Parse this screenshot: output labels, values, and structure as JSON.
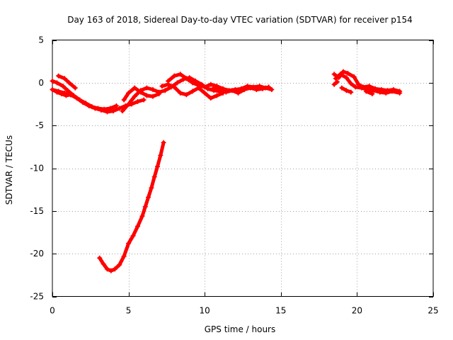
{
  "chart_data": {
    "type": "scatter",
    "title": "Day 163 of 2018, Sidereal Day-to-day VTEC variation (SDTVAR) for receiver p154",
    "xlabel": "GPS time / hours",
    "ylabel": "SDTVAR / TECUs",
    "xlim": [
      0,
      25
    ],
    "ylim": [
      -25,
      5
    ],
    "xticks": [
      0,
      5,
      10,
      15,
      20,
      25
    ],
    "yticks": [
      5,
      0,
      -5,
      -10,
      -15,
      -20,
      -25
    ],
    "grid": true,
    "marker": "plus",
    "color": "#ff0000",
    "series": [
      {
        "name": "trace-upper-a",
        "points": [
          [
            0.0,
            -0.8
          ],
          [
            0.4,
            -1.0
          ],
          [
            0.8,
            -1.2
          ],
          [
            1.2,
            -1.4
          ],
          [
            1.6,
            -1.8
          ],
          [
            2.0,
            -2.3
          ],
          [
            2.4,
            -2.7
          ],
          [
            2.8,
            -3.0
          ],
          [
            3.2,
            -3.2
          ],
          [
            3.6,
            -3.4
          ],
          [
            4.0,
            -3.3
          ],
          [
            4.4,
            -3.0
          ],
          [
            4.8,
            -2.7
          ],
          [
            5.2,
            -2.5
          ],
          [
            5.6,
            -2.2
          ],
          [
            6.0,
            -2.0
          ]
        ]
      },
      {
        "name": "trace-upper-b",
        "points": [
          [
            0.0,
            0.2
          ],
          [
            0.3,
            0.0
          ],
          [
            0.7,
            -0.4
          ],
          [
            1.0,
            -0.9
          ],
          [
            1.4,
            -1.5
          ],
          [
            1.8,
            -2.0
          ],
          [
            2.2,
            -2.4
          ],
          [
            2.6,
            -2.8
          ],
          [
            3.0,
            -3.0
          ],
          [
            3.4,
            -3.1
          ],
          [
            3.8,
            -3.0
          ],
          [
            4.2,
            -2.7
          ]
        ]
      },
      {
        "name": "trace-upper-c",
        "points": [
          [
            0.0,
            -0.8
          ],
          [
            0.3,
            -1.1
          ],
          [
            0.6,
            -1.3
          ],
          [
            0.9,
            -1.5
          ],
          [
            1.2,
            -1.4
          ]
        ]
      },
      {
        "name": "trace-upper-d",
        "points": [
          [
            0.4,
            0.8
          ],
          [
            0.8,
            0.5
          ],
          [
            1.1,
            0.0
          ],
          [
            1.5,
            -0.6
          ]
        ]
      },
      {
        "name": "trace-upper-e",
        "points": [
          [
            4.6,
            -3.3
          ],
          [
            5.0,
            -2.5
          ],
          [
            5.4,
            -1.6
          ],
          [
            5.8,
            -0.9
          ],
          [
            6.2,
            -0.6
          ],
          [
            6.6,
            -0.8
          ],
          [
            7.0,
            -1.1
          ],
          [
            7.4,
            -0.9
          ],
          [
            7.8,
            -0.5
          ],
          [
            8.2,
            0.0
          ],
          [
            8.6,
            0.4
          ],
          [
            9.0,
            0.6
          ],
          [
            9.4,
            0.2
          ],
          [
            9.8,
            -0.2
          ],
          [
            10.2,
            -0.7
          ],
          [
            10.6,
            -0.9
          ],
          [
            11.0,
            -1.0
          ]
        ]
      },
      {
        "name": "trace-upper-f",
        "points": [
          [
            4.7,
            -2.0
          ],
          [
            5.0,
            -1.2
          ],
          [
            5.4,
            -0.6
          ],
          [
            5.8,
            -1.1
          ],
          [
            6.2,
            -1.5
          ],
          [
            6.6,
            -1.6
          ],
          [
            7.0,
            -1.3
          ]
        ]
      },
      {
        "name": "trace-upper-g",
        "points": [
          [
            7.2,
            -0.4
          ],
          [
            7.6,
            -0.2
          ],
          [
            8.0,
            -0.5
          ],
          [
            8.4,
            -1.2
          ],
          [
            8.8,
            -1.4
          ],
          [
            9.2,
            -1.0
          ],
          [
            9.6,
            -0.6
          ],
          [
            10.0,
            -1.2
          ],
          [
            10.4,
            -1.8
          ],
          [
            10.8,
            -1.5
          ],
          [
            11.2,
            -1.2
          ]
        ]
      },
      {
        "name": "trace-upper-h",
        "points": [
          [
            7.6,
            0.2
          ],
          [
            8.0,
            0.8
          ],
          [
            8.4,
            1.0
          ],
          [
            8.8,
            0.5
          ],
          [
            9.2,
            0.0
          ],
          [
            9.6,
            -0.3
          ],
          [
            10.0,
            -0.5
          ],
          [
            10.4,
            -0.2
          ],
          [
            10.8,
            -0.4
          ],
          [
            11.2,
            -0.7
          ],
          [
            11.6,
            -0.9
          ],
          [
            12.0,
            -0.8
          ],
          [
            12.4,
            -0.7
          ],
          [
            12.8,
            -0.4
          ],
          [
            13.2,
            -0.5
          ],
          [
            13.6,
            -0.4
          ],
          [
            14.0,
            -0.6
          ],
          [
            14.4,
            -0.8
          ]
        ]
      },
      {
        "name": "trace-upper-i",
        "points": [
          [
            10.6,
            -0.6
          ],
          [
            11.0,
            -0.8
          ],
          [
            11.4,
            -1.1
          ],
          [
            11.8,
            -0.9
          ],
          [
            12.2,
            -1.2
          ],
          [
            12.6,
            -0.8
          ],
          [
            13.0,
            -0.6
          ],
          [
            13.4,
            -0.8
          ],
          [
            13.8,
            -0.7
          ],
          [
            14.2,
            -0.5
          ]
        ]
      },
      {
        "name": "trace-right-a",
        "points": [
          [
            18.5,
            1.0
          ],
          [
            18.8,
            0.6
          ],
          [
            19.1,
            1.3
          ],
          [
            19.4,
            1.1
          ],
          [
            19.8,
            0.7
          ],
          [
            20.1,
            -0.2
          ],
          [
            20.4,
            -0.5
          ],
          [
            20.8,
            -0.4
          ],
          [
            21.2,
            -0.7
          ],
          [
            21.6,
            -0.8
          ],
          [
            22.0,
            -0.9
          ],
          [
            22.4,
            -0.8
          ],
          [
            22.8,
            -1.0
          ]
        ]
      },
      {
        "name": "trace-right-b",
        "points": [
          [
            18.6,
            0.5
          ],
          [
            18.9,
            1.0
          ],
          [
            19.3,
            0.6
          ],
          [
            19.6,
            -0.1
          ],
          [
            19.9,
            -0.5
          ],
          [
            20.3,
            -0.6
          ],
          [
            20.7,
            -0.8
          ],
          [
            21.1,
            -0.9
          ],
          [
            21.5,
            -1.1
          ],
          [
            21.9,
            -1.2
          ],
          [
            22.3,
            -1.0
          ],
          [
            22.8,
            -1.2
          ]
        ]
      },
      {
        "name": "trace-right-c",
        "points": [
          [
            18.5,
            -0.2
          ],
          [
            18.7,
            0.1
          ]
        ]
      },
      {
        "name": "trace-right-d",
        "points": [
          [
            19.0,
            -0.6
          ],
          [
            19.3,
            -0.9
          ],
          [
            19.6,
            -1.1
          ]
        ]
      },
      {
        "name": "trace-right-e",
        "points": [
          [
            20.6,
            -1.0
          ],
          [
            21.0,
            -1.3
          ]
        ]
      },
      {
        "name": "trace-lower",
        "points": [
          [
            3.1,
            -20.5
          ],
          [
            3.35,
            -21.2
          ],
          [
            3.6,
            -21.8
          ],
          [
            3.85,
            -22.0
          ],
          [
            4.1,
            -21.8
          ],
          [
            4.4,
            -21.3
          ],
          [
            4.7,
            -20.3
          ],
          [
            5.0,
            -18.8
          ],
          [
            5.3,
            -17.9
          ],
          [
            5.6,
            -16.8
          ],
          [
            5.9,
            -15.6
          ],
          [
            6.1,
            -14.5
          ],
          [
            6.3,
            -13.4
          ],
          [
            6.5,
            -12.3
          ],
          [
            6.7,
            -11.0
          ],
          [
            6.9,
            -9.8
          ],
          [
            7.1,
            -8.5
          ],
          [
            7.3,
            -7.0
          ]
        ]
      }
    ]
  }
}
